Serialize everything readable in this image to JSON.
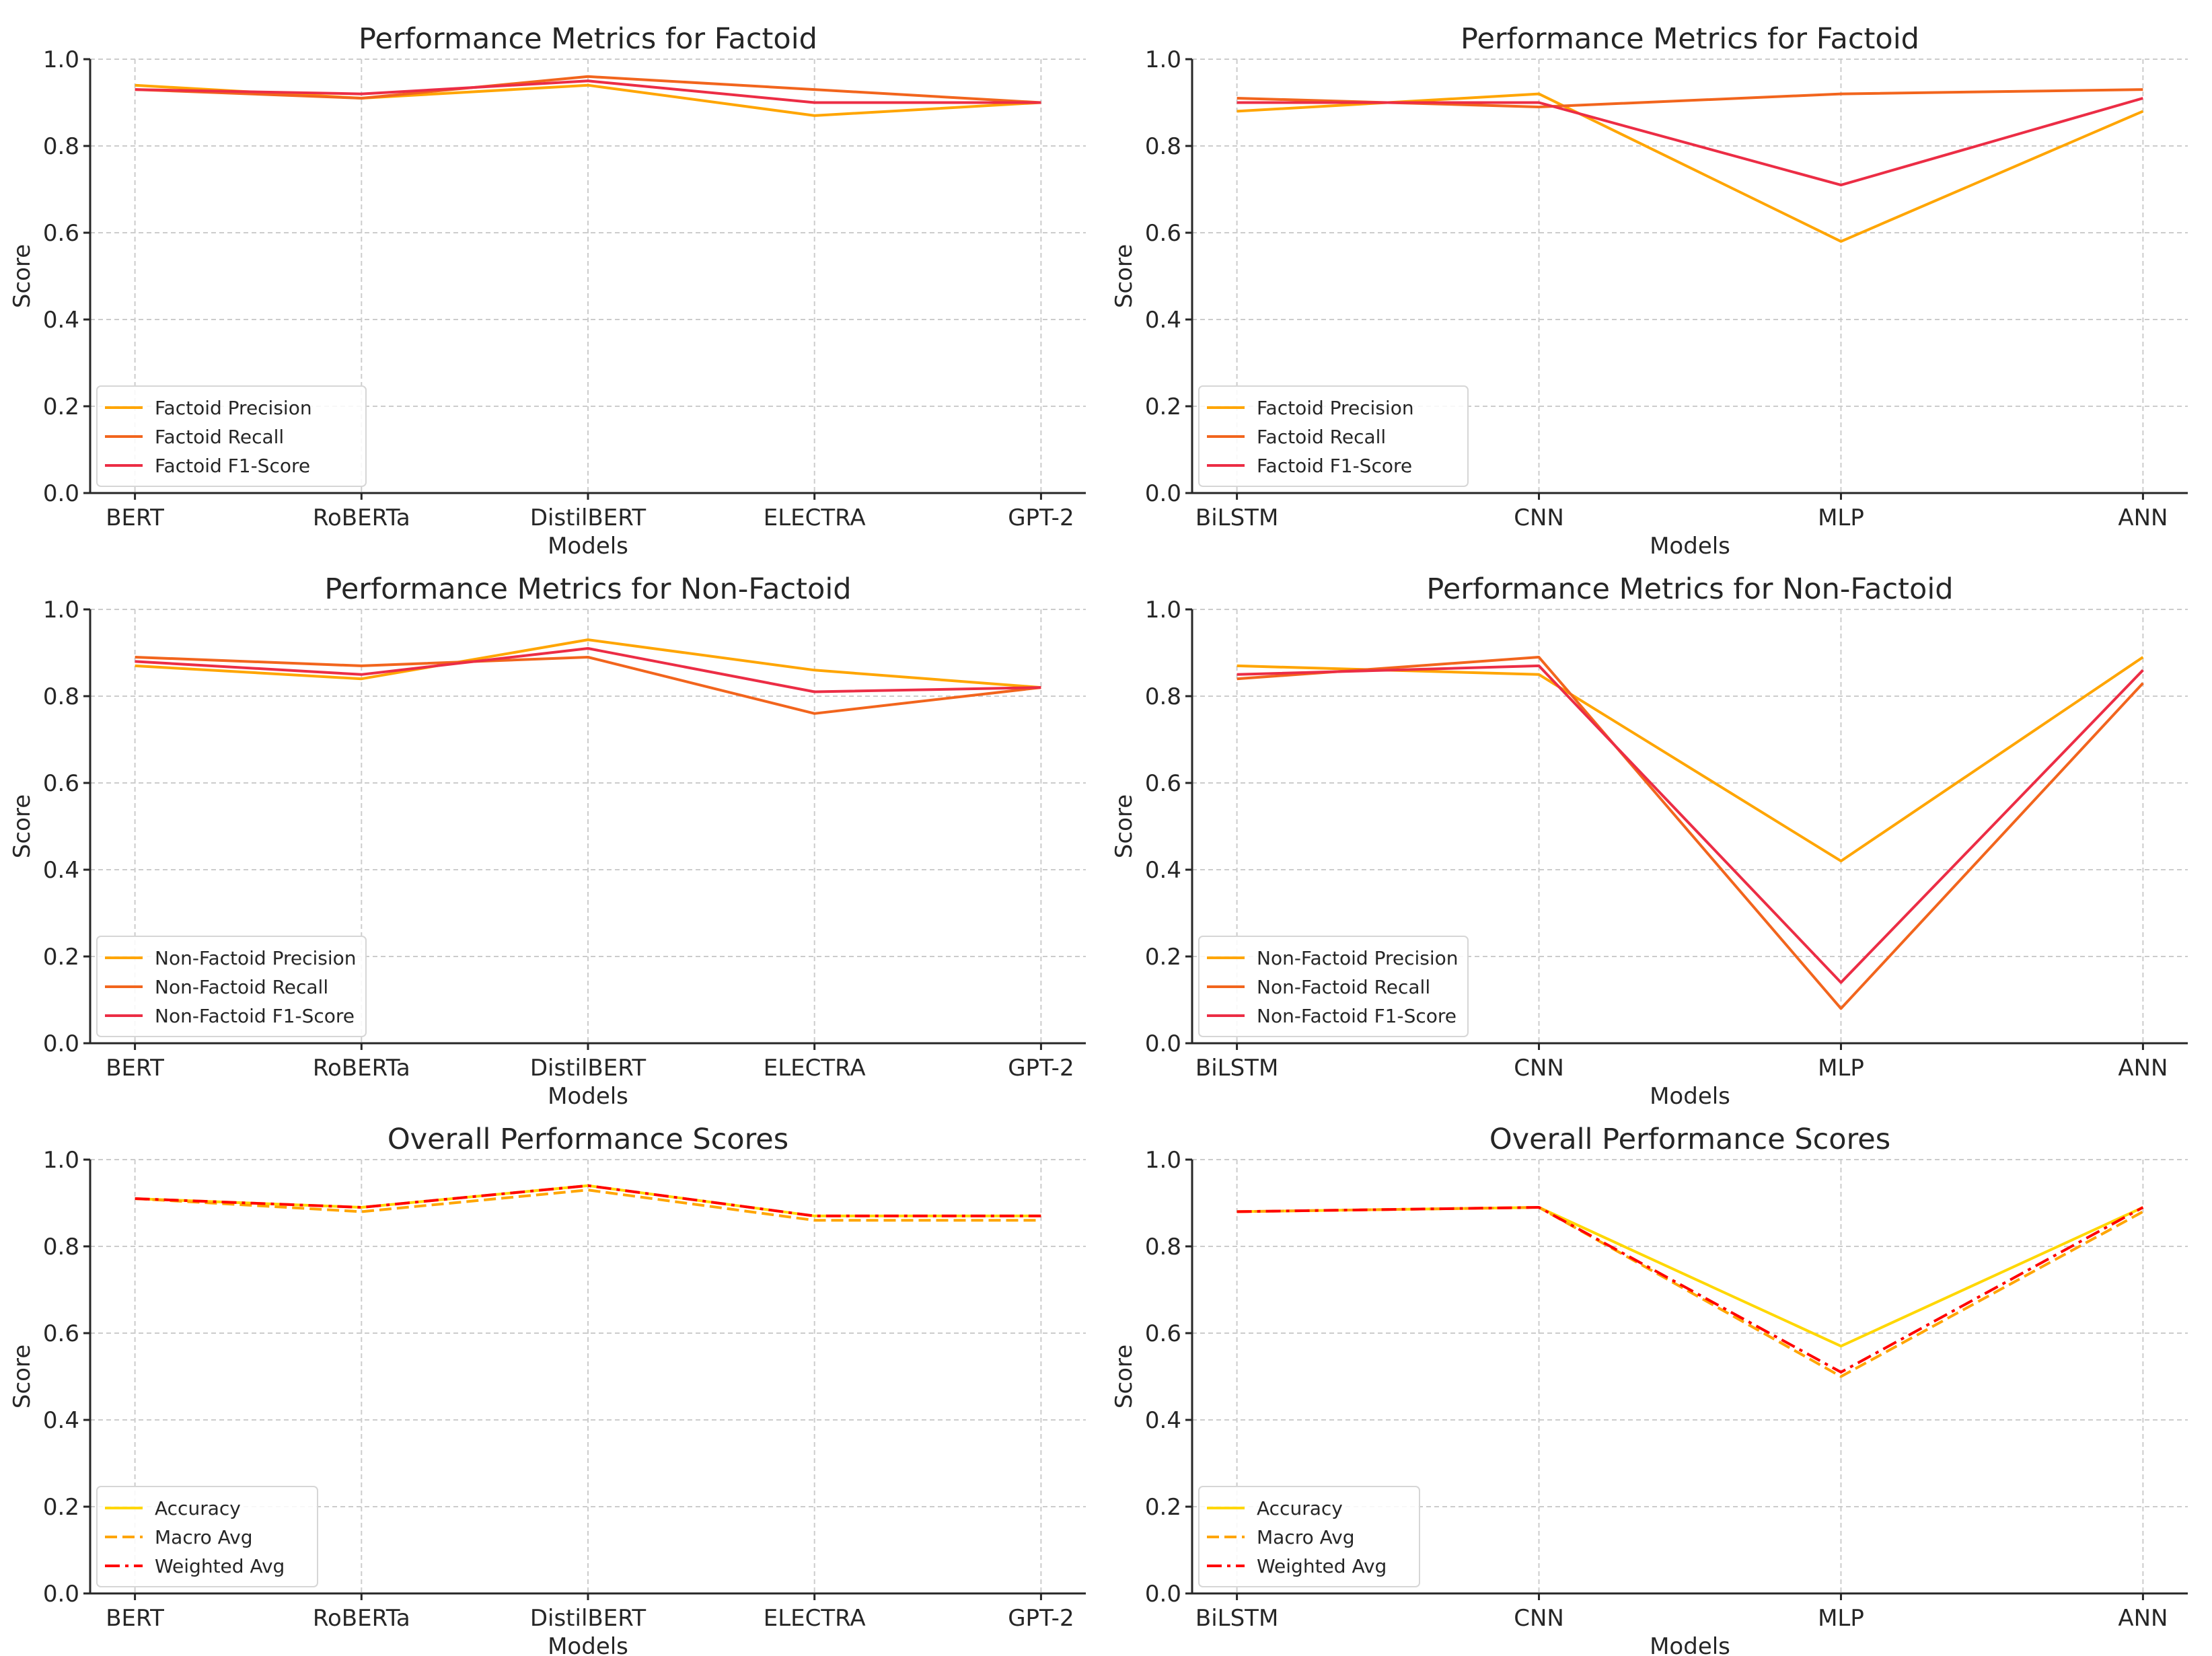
{
  "chart_data": [
    {
      "type": "line",
      "title": "Performance Metrics for Factoid",
      "xlabel": "Models",
      "ylabel": "Score",
      "ylim": [
        0,
        1.0
      ],
      "yticks": [
        "0.0",
        "0.2",
        "0.4",
        "0.6",
        "0.8",
        "1.0"
      ],
      "grid": true,
      "legend_position": "lower-left",
      "categories": [
        "BERT",
        "RoBERTa",
        "DistilBERT",
        "ELECTRA",
        "GPT-2"
      ],
      "series": [
        {
          "name": "Factoid Precision",
          "color": "#ffa500",
          "dash": "solid",
          "values": [
            0.94,
            0.91,
            0.94,
            0.87,
            0.9
          ]
        },
        {
          "name": "Factoid Recall",
          "color": "#f2651d",
          "dash": "solid",
          "values": [
            0.93,
            0.91,
            0.96,
            0.93,
            0.9
          ]
        },
        {
          "name": "Factoid F1-Score",
          "color": "#ec2d45",
          "dash": "solid",
          "values": [
            0.93,
            0.92,
            0.95,
            0.9,
            0.9
          ]
        }
      ]
    },
    {
      "type": "line",
      "title": "Performance Metrics for Factoid",
      "xlabel": "Models",
      "ylabel": "Score",
      "ylim": [
        0,
        1.0
      ],
      "yticks": [
        "0.0",
        "0.2",
        "0.4",
        "0.6",
        "0.8",
        "1.0"
      ],
      "grid": true,
      "legend_position": "lower-left",
      "categories": [
        "BiLSTM",
        "CNN",
        "MLP",
        "ANN"
      ],
      "series": [
        {
          "name": "Factoid Precision",
          "color": "#ffa500",
          "dash": "solid",
          "values": [
            0.88,
            0.92,
            0.58,
            0.88
          ]
        },
        {
          "name": "Factoid Recall",
          "color": "#f2651d",
          "dash": "solid",
          "values": [
            0.91,
            0.89,
            0.92,
            0.93
          ]
        },
        {
          "name": "Factoid F1-Score",
          "color": "#ec2d45",
          "dash": "solid",
          "values": [
            0.9,
            0.9,
            0.71,
            0.91
          ]
        }
      ]
    },
    {
      "type": "line",
      "title": "Performance Metrics for Non-Factoid",
      "xlabel": "Models",
      "ylabel": "Score",
      "ylim": [
        0,
        1.0
      ],
      "yticks": [
        "0.0",
        "0.2",
        "0.4",
        "0.6",
        "0.8",
        "1.0"
      ],
      "grid": true,
      "legend_position": "lower-left",
      "categories": [
        "BERT",
        "RoBERTa",
        "DistilBERT",
        "ELECTRA",
        "GPT-2"
      ],
      "series": [
        {
          "name": "Non-Factoid Precision",
          "color": "#ffa500",
          "dash": "solid",
          "values": [
            0.87,
            0.84,
            0.93,
            0.86,
            0.82
          ]
        },
        {
          "name": "Non-Factoid Recall",
          "color": "#f2651d",
          "dash": "solid",
          "values": [
            0.89,
            0.87,
            0.89,
            0.76,
            0.82
          ]
        },
        {
          "name": "Non-Factoid F1-Score",
          "color": "#ec2d45",
          "dash": "solid",
          "values": [
            0.88,
            0.85,
            0.91,
            0.81,
            0.82
          ]
        }
      ]
    },
    {
      "type": "line",
      "title": "Performance Metrics for Non-Factoid",
      "xlabel": "Models",
      "ylabel": "Score",
      "ylim": [
        0,
        1.0
      ],
      "yticks": [
        "0.0",
        "0.2",
        "0.4",
        "0.6",
        "0.8",
        "1.0"
      ],
      "grid": true,
      "legend_position": "lower-left",
      "categories": [
        "BiLSTM",
        "CNN",
        "MLP",
        "ANN"
      ],
      "series": [
        {
          "name": "Non-Factoid Precision",
          "color": "#ffa500",
          "dash": "solid",
          "values": [
            0.87,
            0.85,
            0.42,
            0.89
          ]
        },
        {
          "name": "Non-Factoid Recall",
          "color": "#f2651d",
          "dash": "solid",
          "values": [
            0.84,
            0.89,
            0.08,
            0.83
          ]
        },
        {
          "name": "Non-Factoid F1-Score",
          "color": "#ec2d45",
          "dash": "solid",
          "values": [
            0.85,
            0.87,
            0.14,
            0.86
          ]
        }
      ]
    },
    {
      "type": "line",
      "title": "Overall Performance Scores",
      "xlabel": "Models",
      "ylabel": "Score",
      "ylim": [
        0,
        1.0
      ],
      "yticks": [
        "0.0",
        "0.2",
        "0.4",
        "0.6",
        "0.8",
        "1.0"
      ],
      "grid": true,
      "legend_position": "lower-left",
      "categories": [
        "BERT",
        "RoBERTa",
        "DistilBERT",
        "ELECTRA",
        "GPT-2"
      ],
      "series": [
        {
          "name": "Accuracy",
          "color": "#ffd700",
          "dash": "solid",
          "values": [
            0.91,
            0.89,
            0.94,
            0.87,
            0.87
          ]
        },
        {
          "name": "Macro Avg",
          "color": "#ffa500",
          "dash": "dashed",
          "values": [
            0.91,
            0.88,
            0.93,
            0.86,
            0.86
          ]
        },
        {
          "name": "Weighted Avg",
          "color": "#ff0000",
          "dash": "dashdot",
          "values": [
            0.91,
            0.89,
            0.94,
            0.87,
            0.87
          ]
        }
      ]
    },
    {
      "type": "line",
      "title": "Overall Performance Scores",
      "xlabel": "Models",
      "ylabel": "Score",
      "ylim": [
        0,
        1.0
      ],
      "yticks": [
        "0.0",
        "0.2",
        "0.4",
        "0.6",
        "0.8",
        "1.0"
      ],
      "grid": true,
      "legend_position": "lower-left",
      "categories": [
        "BiLSTM",
        "CNN",
        "MLP",
        "ANN"
      ],
      "series": [
        {
          "name": "Accuracy",
          "color": "#ffd700",
          "dash": "solid",
          "values": [
            0.88,
            0.89,
            0.57,
            0.89
          ]
        },
        {
          "name": "Macro Avg",
          "color": "#ffa500",
          "dash": "dashed",
          "values": [
            0.88,
            0.89,
            0.5,
            0.88
          ]
        },
        {
          "name": "Weighted Avg",
          "color": "#ff0000",
          "dash": "dashdot",
          "values": [
            0.88,
            0.89,
            0.51,
            0.89
          ]
        }
      ]
    }
  ]
}
